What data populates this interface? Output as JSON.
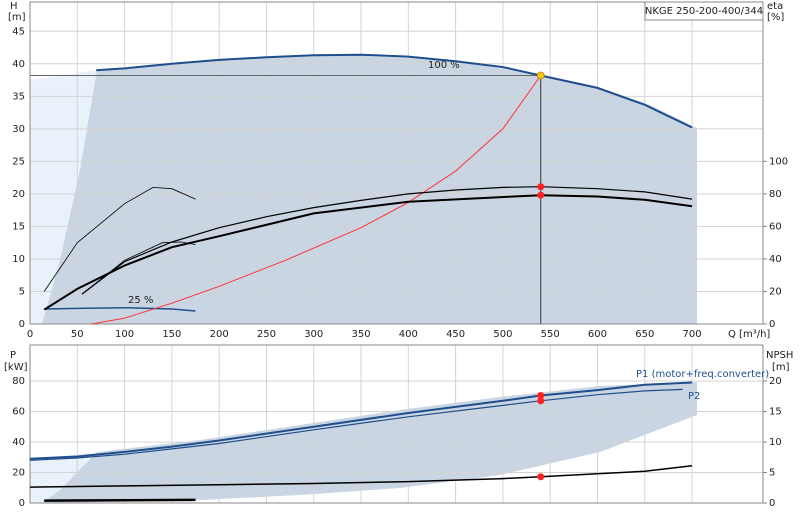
{
  "chart_data": [
    {
      "type": "line",
      "title": "NKGE 250-200-400/344",
      "ylabel": "H",
      "yunit": "[m]",
      "y2label": "eta",
      "y2unit": "[%]",
      "xlabel": "Q [m³/h]",
      "xlim": [
        0,
        775
      ],
      "xticks": [
        0,
        50,
        100,
        150,
        200,
        250,
        300,
        350,
        400,
        450,
        500,
        550,
        600,
        650,
        700
      ],
      "ylim": [
        0,
        49.5
      ],
      "yticks": [
        0,
        5,
        10,
        15,
        20,
        25,
        30,
        35,
        40,
        45
      ],
      "y2lim": [
        0,
        198
      ],
      "y2ticks": [
        0,
        20,
        40,
        60,
        80,
        100
      ],
      "grid": true,
      "series": [
        {
          "name": "100 %",
          "color": "#1f4e8c",
          "width": 2,
          "axis": "y",
          "x": [
            70,
            100,
            150,
            200,
            250,
            300,
            350,
            400,
            450,
            500,
            540,
            600,
            650,
            700
          ],
          "values": [
            39.0,
            39.3,
            40.0,
            40.6,
            41.0,
            41.3,
            41.4,
            41.1,
            40.4,
            39.5,
            38.2,
            36.3,
            33.7,
            30.2
          ]
        },
        {
          "name": "25 %",
          "color": "#1f4e8c",
          "width": 1.5,
          "axis": "y",
          "x": [
            15,
            50,
            100,
            150,
            175
          ],
          "values": [
            2.3,
            2.4,
            2.5,
            2.3,
            2.0
          ]
        },
        {
          "color": "#ff3333",
          "width": 1,
          "axis": "y",
          "x": [
            65,
            100,
            150,
            200,
            270,
            350,
            400,
            450,
            500,
            540
          ],
          "values": [
            0,
            0.9,
            3.2,
            5.8,
            9.8,
            14.8,
            18.7,
            23.5,
            30.0,
            38.2
          ]
        },
        {
          "color": "#000000",
          "width": 0.8,
          "axis": "y",
          "x": [
            15,
            50,
            100,
            130,
            150,
            175
          ],
          "values": [
            5.0,
            12.5,
            18.5,
            21.0,
            20.8,
            19.2
          ]
        },
        {
          "color": "#000000",
          "width": 0.8,
          "axis": "y",
          "x": [
            55,
            100,
            140,
            160,
            175
          ],
          "values": [
            4.6,
            9.8,
            12.5,
            12.6,
            12.2
          ]
        },
        {
          "color": "#000000",
          "width": 1.2,
          "axis": "y2",
          "x": [
            55,
            100,
            150,
            200,
            250,
            300,
            350,
            400,
            450,
            500,
            540,
            600,
            650,
            700
          ],
          "values": [
            18.4,
            38.4,
            50.4,
            59.2,
            66,
            71.6,
            76,
            80,
            82.4,
            84,
            84.4,
            83.2,
            81.2,
            76.8
          ]
        },
        {
          "color": "#000000",
          "width": 2,
          "axis": "y2",
          "x": [
            15,
            50,
            100,
            150,
            200,
            300,
            400,
            540,
            600,
            650,
            700
          ],
          "values": [
            8.8,
            21.6,
            36,
            47.2,
            54,
            68,
            75.2,
            79.2,
            78.4,
            76.4,
            72.4
          ]
        },
        {
          "marker": true,
          "guide": true,
          "color": "#f5c518",
          "axis": "y",
          "x": [
            540
          ],
          "values": [
            38.2
          ]
        },
        {
          "marker": true,
          "color": "#ff2020",
          "axis": "y2",
          "x": [
            540,
            540
          ],
          "values": [
            84.4,
            79.2
          ]
        }
      ]
    },
    {
      "type": "line",
      "ylabel": "P",
      "yunit": "[kW]",
      "y2label": "NPSH",
      "y2unit": "[m]",
      "xlim": [
        0,
        775
      ],
      "xticks": [
        0,
        50,
        100,
        150,
        200,
        250,
        300,
        350,
        400,
        450,
        500,
        550,
        600,
        650,
        700
      ],
      "ylim": [
        0,
        103.6
      ],
      "yticks": [
        0,
        20,
        40,
        60,
        80
      ],
      "y2lim": [
        0,
        25.9
      ],
      "y2ticks": [
        0,
        5,
        10,
        15,
        20
      ],
      "grid": true,
      "series": [
        {
          "name": "P1 (motor+freq.converter)",
          "color": "#1f4e8c",
          "width": 2,
          "axis": "y",
          "x": [
            0,
            50,
            100,
            150,
            200,
            300,
            400,
            500,
            540,
            600,
            650,
            700
          ],
          "values": [
            29,
            30.5,
            33.5,
            37,
            41,
            50,
            59,
            67,
            70.5,
            74,
            77.5,
            79
          ]
        },
        {
          "name": "P2",
          "color": "#1f4e8c",
          "width": 1.2,
          "axis": "y",
          "x": [
            0,
            50,
            100,
            150,
            200,
            300,
            400,
            500,
            540,
            600,
            650,
            690
          ],
          "values": [
            28,
            29.5,
            32,
            35.5,
            39,
            48,
            56.5,
            64,
            67,
            71,
            73.5,
            74.5
          ]
        },
        {
          "color": "#000000",
          "width": 1.5,
          "axis": "y2",
          "x": [
            0,
            100,
            200,
            300,
            400,
            500,
            540,
            600,
            650,
            700
          ],
          "values": [
            2.6,
            2.8,
            3.0,
            3.2,
            3.5,
            4.0,
            4.3,
            4.8,
            5.2,
            6.1
          ]
        },
        {
          "color": "#000000",
          "width": 2.5,
          "axis": "y2",
          "x": [
            15,
            100,
            175
          ],
          "values": [
            0.4,
            0.45,
            0.5
          ]
        },
        {
          "marker": true,
          "color": "#ff2020",
          "axis": "y",
          "x": [
            540,
            540
          ],
          "values": [
            70.5,
            67
          ]
        },
        {
          "marker": true,
          "color": "#ff2020",
          "axis": "y2",
          "x": [
            540
          ],
          "values": [
            4.3
          ]
        }
      ]
    }
  ]
}
